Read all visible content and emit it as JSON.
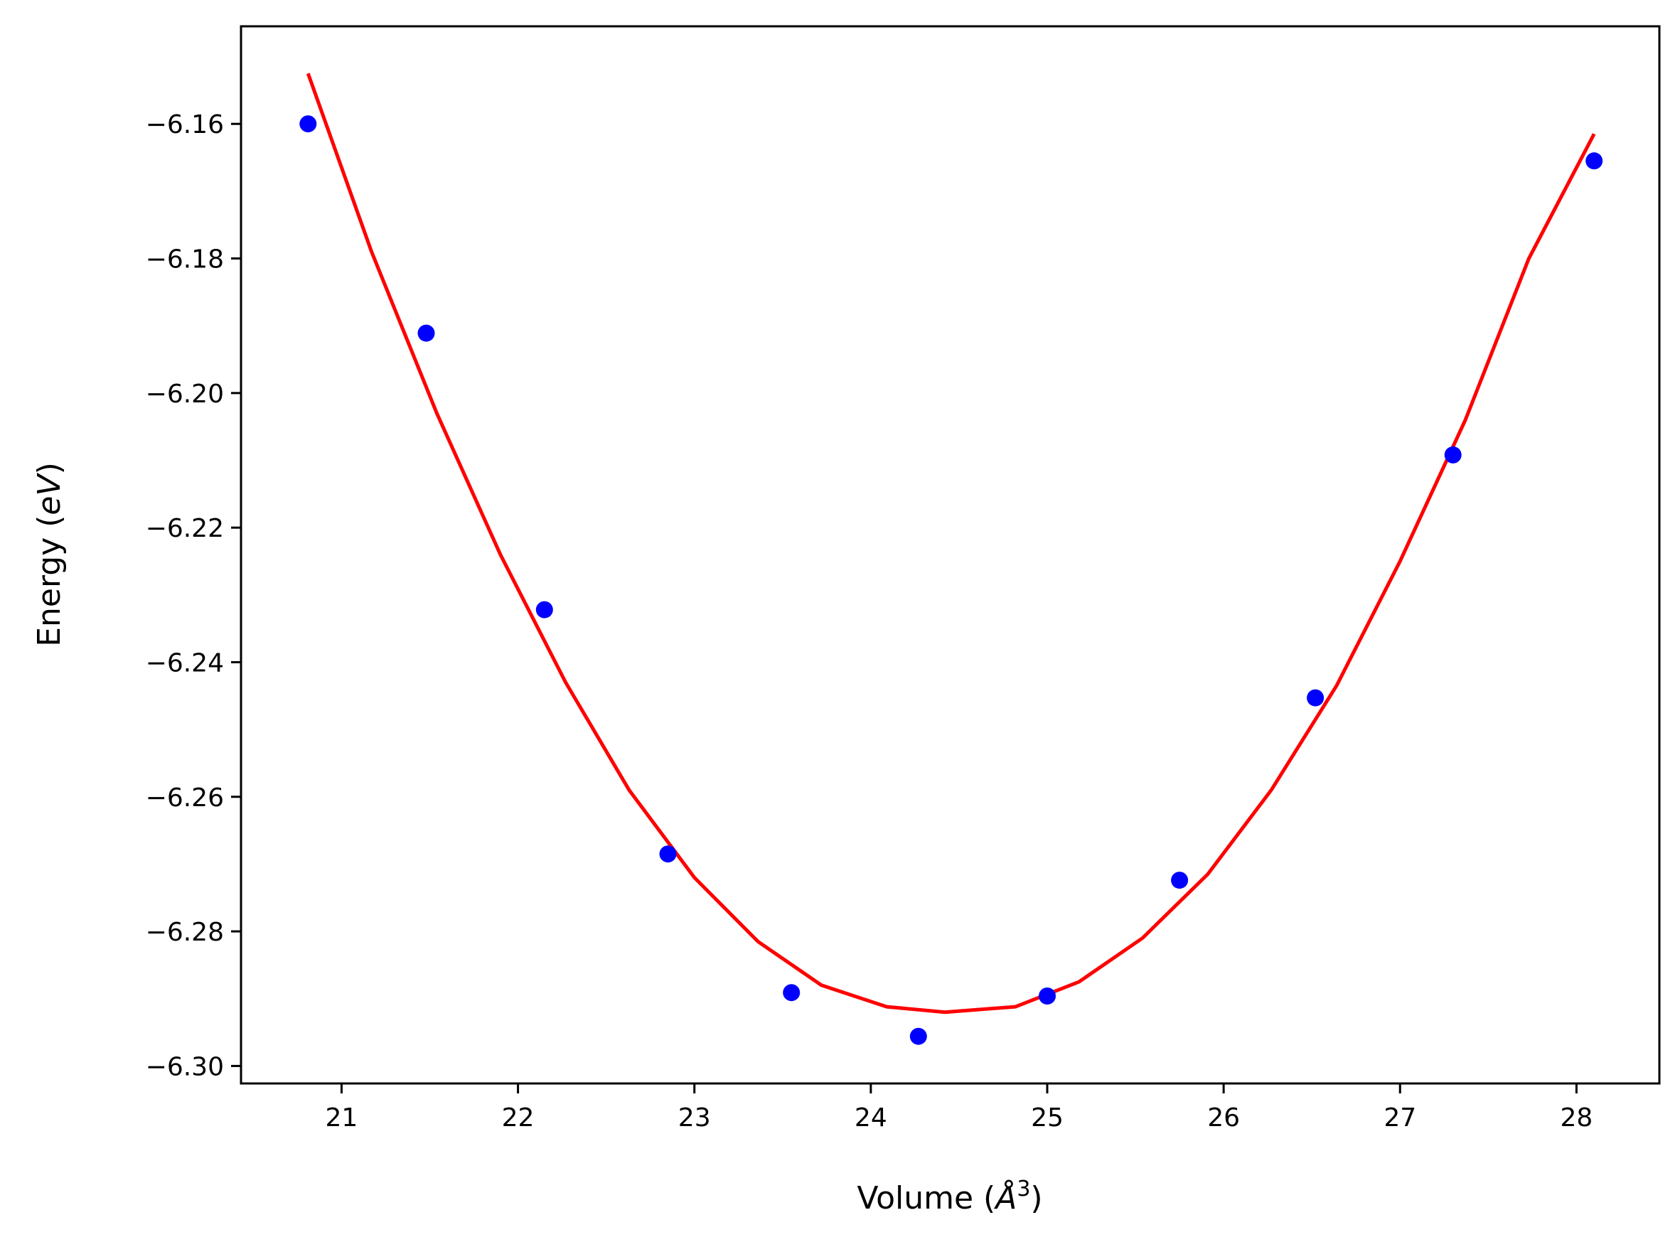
{
  "chart_data": {
    "type": "scatter",
    "title": "",
    "xlabel_main": "Volume (",
    "xlabel_unit": "Å",
    "xlabel_sup": "3",
    "xlabel_close": ")",
    "ylabel_main": "Energy (",
    "ylabel_unit": "eV",
    "ylabel_close": ")",
    "xlim": [
      20.43,
      28.47
    ],
    "ylim": [
      -6.3026,
      -6.1455
    ],
    "x_ticks": [
      21,
      22,
      23,
      24,
      25,
      26,
      27,
      28
    ],
    "x_tick_labels": [
      "21",
      "22",
      "23",
      "24",
      "25",
      "26",
      "27",
      "28"
    ],
    "y_ticks": [
      -6.16,
      -6.18,
      -6.2,
      -6.22,
      -6.24,
      -6.26,
      -6.28,
      -6.3
    ],
    "y_tick_labels": [
      "−6.16",
      "−6.18",
      "−6.20",
      "−6.22",
      "−6.24",
      "−6.26",
      "−6.28",
      "−6.30"
    ],
    "grid": false,
    "legend": "none",
    "series": [
      {
        "kind": "points",
        "color": "#0000ff",
        "x": [
          20.81,
          21.48,
          22.15,
          22.85,
          23.55,
          24.27,
          25.0,
          25.75,
          26.52,
          27.3,
          28.1
        ],
        "y": [
          -6.16,
          -6.1911,
          -6.2322,
          -6.2685,
          -6.2891,
          -6.2956,
          -6.2896,
          -6.2724,
          -6.2453,
          -6.2092,
          -6.1655
        ]
      },
      {
        "kind": "fit-curve",
        "color": "#ff0000",
        "x": [
          20.81,
          21.17,
          21.54,
          21.9,
          22.27,
          22.63,
          23.0,
          23.36,
          23.72,
          24.09,
          24.42,
          24.82,
          25.18,
          25.54,
          25.91,
          26.27,
          26.64,
          27.0,
          27.37,
          27.73,
          28.1
        ],
        "y": [
          -6.1525,
          -6.179,
          -6.203,
          -6.224,
          -6.243,
          -6.259,
          -6.272,
          -6.2815,
          -6.288,
          -6.2912,
          -6.292,
          -6.2912,
          -6.2875,
          -6.281,
          -6.2715,
          -6.259,
          -6.2435,
          -6.225,
          -6.204,
          -6.18,
          -6.1615
        ]
      }
    ]
  }
}
